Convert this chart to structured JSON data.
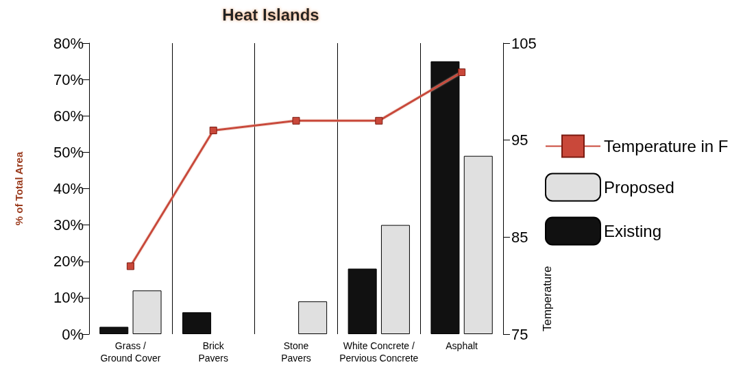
{
  "chart_data": {
    "type": "bar",
    "title": "Heat Islands",
    "ylabel": "% of Total Area",
    "y2label": "Temperature",
    "categories": [
      "Grass /\nGround Cover",
      "Brick\nPavers",
      "Stone\nPavers",
      "White Concrete /\nPervious Concrete",
      "Asphalt"
    ],
    "series": [
      {
        "name": "Existing",
        "color": "#111111",
        "values": [
          2,
          6,
          0,
          18,
          75
        ]
      },
      {
        "name": "Proposed",
        "color": "#e0e0e0",
        "values": [
          12,
          0,
          9,
          30,
          49
        ]
      },
      {
        "name": "Temperature in F",
        "type": "line",
        "axis": "y2",
        "color": "#c9483a",
        "marker": "square",
        "values": [
          82,
          96,
          97,
          97,
          102
        ]
      }
    ],
    "ylim": [
      0,
      80
    ],
    "yticks": [
      {
        "value": 0,
        "label": "0%"
      },
      {
        "value": 10,
        "label": "10%"
      },
      {
        "value": 20,
        "label": "20%"
      },
      {
        "value": 30,
        "label": "30%"
      },
      {
        "value": 40,
        "label": "40%"
      },
      {
        "value": 50,
        "label": "50%"
      },
      {
        "value": 60,
        "label": "60%"
      },
      {
        "value": 70,
        "label": "70%"
      },
      {
        "value": 80,
        "label": "80%"
      }
    ],
    "y2lim": [
      75,
      105
    ],
    "y2ticks": [
      75,
      85,
      95,
      105
    ],
    "grid": "x",
    "legend": "right"
  }
}
